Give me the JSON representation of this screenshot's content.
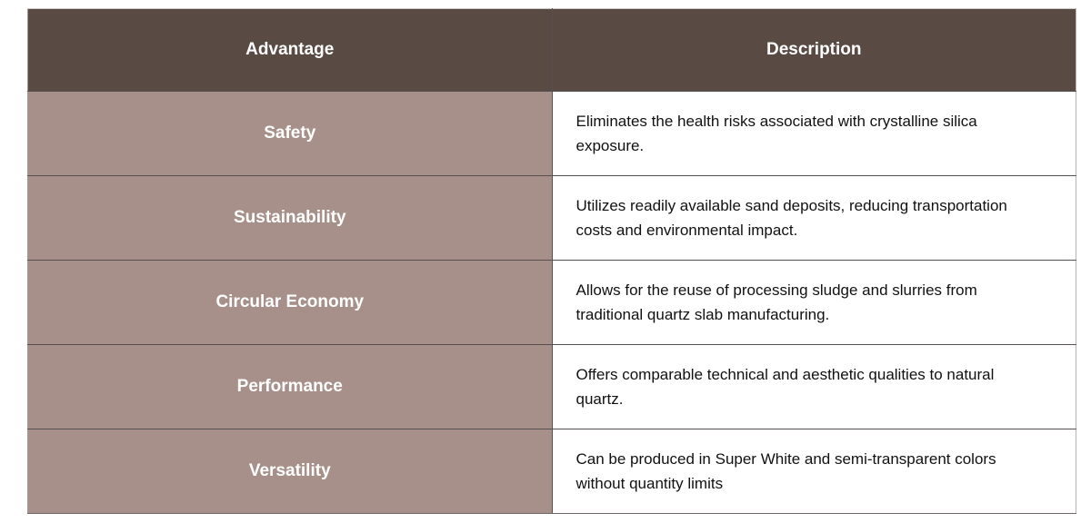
{
  "table": {
    "columns": [
      {
        "label": "Advantage"
      },
      {
        "label": "Description"
      }
    ],
    "rows": [
      {
        "advantage": "Safety",
        "description": "Eliminates the health risks associated with crystalline silica exposure."
      },
      {
        "advantage": "Sustainability",
        "description": "Utilizes readily available sand deposits, reducing transportation costs and environmental impact."
      },
      {
        "advantage": "Circular Economy",
        "description": "Allows for the reuse of processing sludge and slurries from traditional quartz slab manufacturing."
      },
      {
        "advantage": "Performance",
        "description": "Offers comparable technical and aesthetic qualities to natural quartz."
      },
      {
        "advantage": "Versatility",
        "description": "Can be produced in Super White and semi-transparent colors without quantity limits"
      }
    ]
  },
  "colors": {
    "header_bg": "#594a43",
    "advantage_cell_bg": "#a8908a",
    "header_text": "#ffffff",
    "advantage_text": "#ffffff",
    "description_text": "#111111",
    "cell_border": "#565051",
    "page_bg": "#ffffff"
  }
}
